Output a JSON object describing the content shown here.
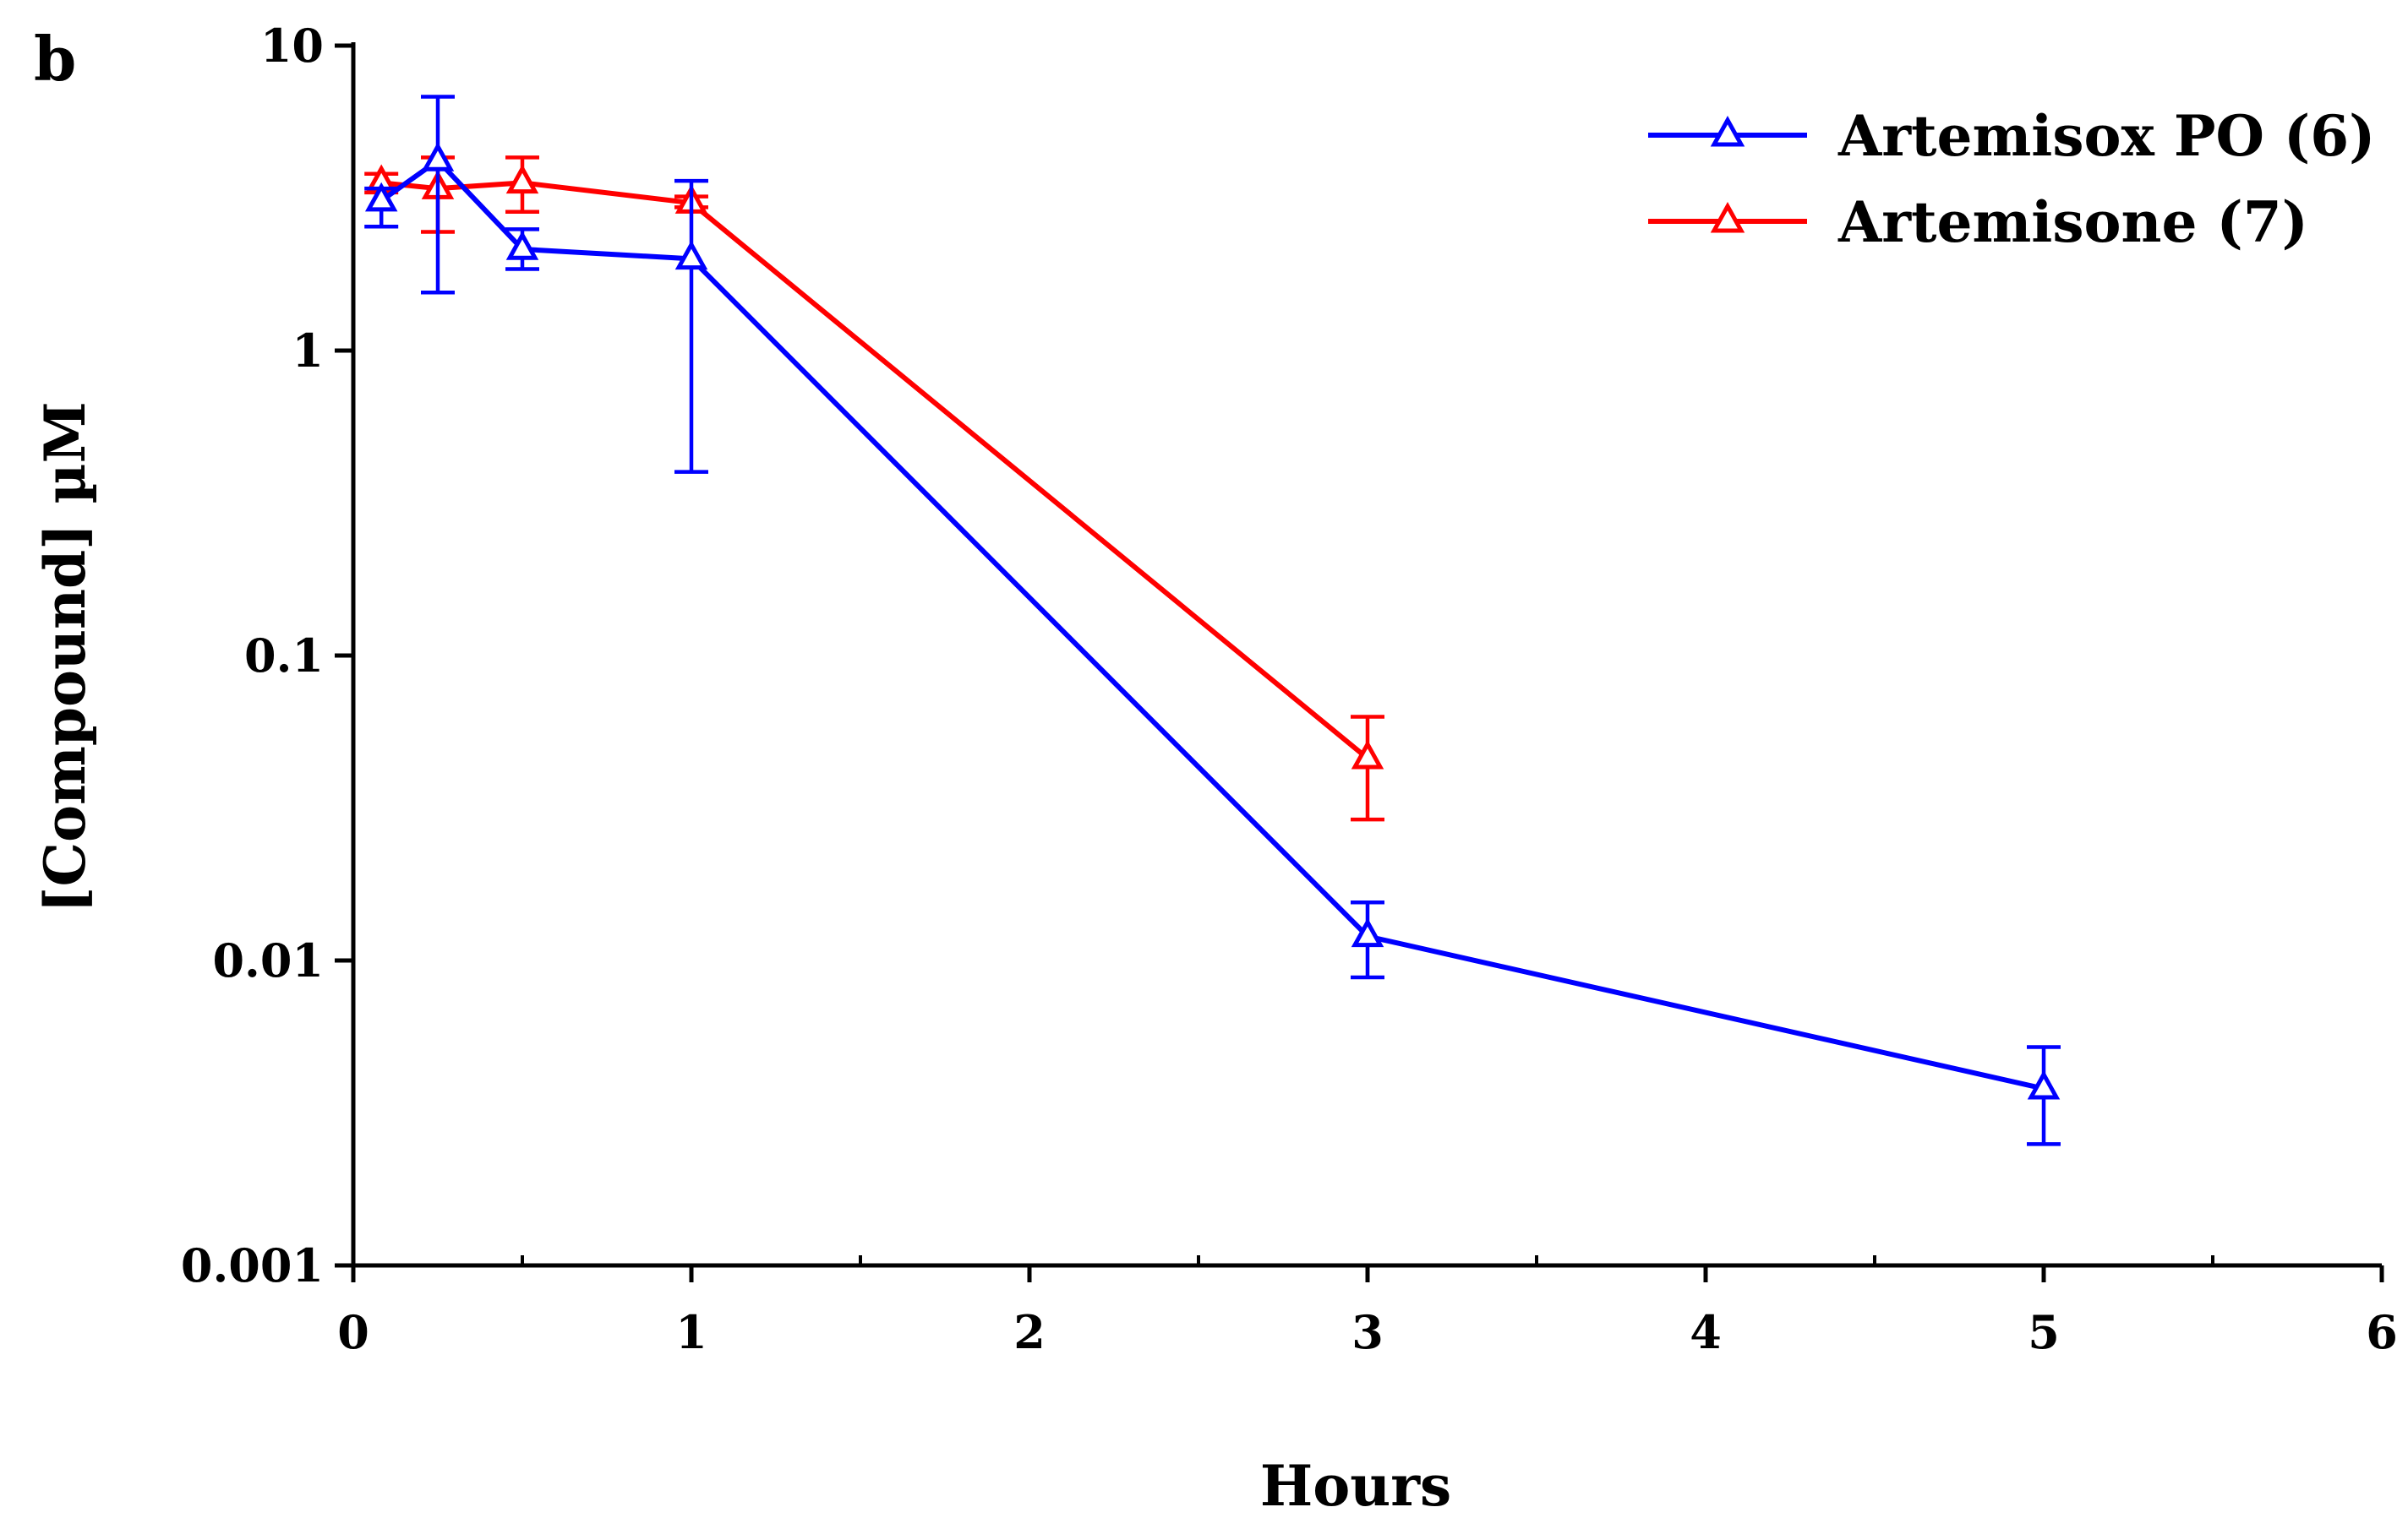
{
  "chart_data": {
    "type": "line",
    "panel_label": "b",
    "title": "",
    "xlabel": "Hours",
    "ylabel": "[Compound] µM",
    "xlim": [
      0,
      6
    ],
    "ylim": [
      0.001,
      10
    ],
    "yscale": "log",
    "x_ticks": [
      0,
      1,
      2,
      3,
      4,
      5,
      6
    ],
    "x_tick_labels": [
      "0",
      "1",
      "2",
      "3",
      "4",
      "5",
      "6"
    ],
    "y_ticks": [
      0.001,
      0.01,
      0.1,
      1,
      10
    ],
    "y_tick_labels": [
      "0.001",
      "0.01",
      "0.1",
      "1",
      "10"
    ],
    "grid": false,
    "legend_position": "top-right",
    "marker": "triangle-open",
    "series": [
      {
        "name": "Artemisox PO (6)",
        "color": "#0000ff",
        "x": [
          0.083,
          0.25,
          0.5,
          1,
          3,
          5
        ],
        "y": [
          3.1,
          4.2,
          2.15,
          2.0,
          0.012,
          0.0038
        ],
        "err_low": [
          2.55,
          1.55,
          1.85,
          0.4,
          0.0088,
          0.0025
        ],
        "err_high": [
          3.4,
          6.8,
          2.5,
          3.6,
          0.0155,
          0.0052
        ]
      },
      {
        "name": "Artemisone (7)",
        "color": "#ff0000",
        "x": [
          0.083,
          0.25,
          0.5,
          1,
          3
        ],
        "y": [
          3.55,
          3.4,
          3.55,
          3.05,
          0.046
        ],
        "err_low": [
          3.3,
          2.45,
          2.85,
          2.95,
          0.029
        ],
        "err_high": [
          3.8,
          4.3,
          4.3,
          3.2,
          0.063
        ]
      }
    ]
  }
}
